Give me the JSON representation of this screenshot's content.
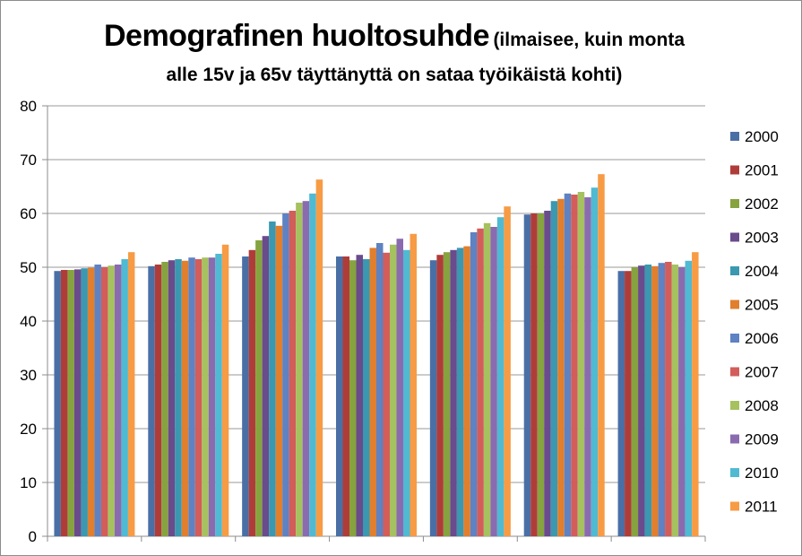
{
  "chart_data": {
    "type": "bar",
    "title": "Demografinen huoltosuhde",
    "subtitle_part1": "(ilmaisee, kuin monta",
    "subtitle_part2": "alle 15v ja 65v täyttänyttä on sataa työikäistä kohti)",
    "xlabel": "",
    "ylabel": "",
    "ylim": [
      0,
      80
    ],
    "yticks": [
      0,
      10,
      20,
      30,
      40,
      50,
      60,
      70,
      80
    ],
    "grid": true,
    "legend_position": "right",
    "categories": [
      "",
      "",
      "",
      "",
      "",
      "",
      ""
    ],
    "series": [
      {
        "name": "2000",
        "color": "#4a6fa5",
        "values": [
          49.3,
          50.2,
          52.0,
          52.0,
          51.3,
          59.8,
          49.3
        ]
      },
      {
        "name": "2001",
        "color": "#b03c3a",
        "values": [
          49.5,
          50.5,
          53.2,
          52.0,
          52.3,
          60.0,
          49.3
        ]
      },
      {
        "name": "2002",
        "color": "#86a33f",
        "values": [
          49.5,
          51.0,
          55.0,
          51.3,
          52.8,
          60.0,
          50.0
        ]
      },
      {
        "name": "2003",
        "color": "#6a4b8c",
        "values": [
          49.6,
          51.3,
          55.8,
          52.3,
          53.2,
          60.5,
          50.3
        ]
      },
      {
        "name": "2004",
        "color": "#3a98b0",
        "values": [
          49.8,
          51.5,
          58.5,
          51.5,
          53.6,
          62.3,
          50.5
        ]
      },
      {
        "name": "2005",
        "color": "#e07f2e",
        "values": [
          49.9,
          51.2,
          57.7,
          53.6,
          53.9,
          62.7,
          50.2
        ]
      },
      {
        "name": "2006",
        "color": "#5e82c2",
        "values": [
          50.5,
          51.8,
          60.0,
          54.5,
          56.5,
          63.7,
          50.8
        ]
      },
      {
        "name": "2007",
        "color": "#d25d5a",
        "values": [
          50.0,
          51.5,
          60.5,
          52.7,
          57.2,
          63.5,
          51.0
        ]
      },
      {
        "name": "2008",
        "color": "#a6c15f",
        "values": [
          50.3,
          51.8,
          62.0,
          54.2,
          58.2,
          64.0,
          50.5
        ]
      },
      {
        "name": "2009",
        "color": "#8a6bb0",
        "values": [
          50.5,
          51.8,
          62.3,
          55.3,
          57.5,
          63.0,
          50.0
        ]
      },
      {
        "name": "2010",
        "color": "#4fbad2",
        "values": [
          51.5,
          52.5,
          63.7,
          53.2,
          59.3,
          64.8,
          51.2
        ]
      },
      {
        "name": "2011",
        "color": "#f79b45",
        "values": [
          52.8,
          54.2,
          66.3,
          56.2,
          61.3,
          67.3,
          52.8
        ]
      }
    ]
  }
}
